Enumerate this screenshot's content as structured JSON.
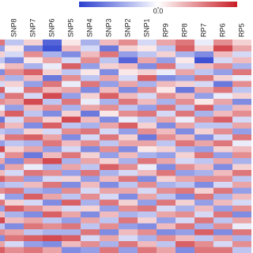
{
  "chart_data": {
    "type": "heatmap",
    "columns": [
      null,
      "SNP8",
      "SNP7",
      "SNP6",
      "SNP5",
      "SNP4",
      "SNP3",
      "SNP2",
      "SNP1",
      "RP9",
      "RP8",
      "RP7",
      "RP6",
      "RP5"
    ],
    "colormap": [
      "#2b3fcf",
      "#ffffff",
      "#c81d25"
    ],
    "zlim": [
      -1,
      1
    ],
    "cbar_ticks": [
      {
        "value": 0,
        "label": "0.0"
      }
    ],
    "values": [
      [
        0.6,
        -0.3,
        0.2,
        -0.8,
        0.1,
        -0.4,
        0.3,
        0.5,
        -0.2,
        0.4,
        0.6,
        -0.1,
        0.5,
        0.2
      ],
      [
        -0.5,
        0.1,
        -0.6,
        -0.9,
        0.3,
        -0.2,
        -0.7,
        0.2,
        0.1,
        -0.3,
        0.7,
        0.2,
        0.8,
        0.4
      ],
      [
        0.2,
        -0.2,
        0.5,
        -0.4,
        -0.6,
        0.3,
        0.6,
        -0.5,
        -0.3,
        0.2,
        -0.4,
        -0.6,
        0.3,
        -0.2
      ],
      [
        -0.3,
        -0.6,
        0.1,
        0.4,
        -0.2,
        0.5,
        -0.3,
        -0.8,
        0.4,
        -0.5,
        0.1,
        -0.9,
        -0.2,
        0.3
      ],
      [
        0.1,
        0.3,
        -0.4,
        -0.1,
        0.7,
        -0.5,
        0.2,
        0.3,
        -0.6,
        0.6,
        -0.2,
        0.3,
        0.5,
        -0.4
      ],
      [
        -0.6,
        0.5,
        0.7,
        0.2,
        -0.3,
        0.1,
        -0.6,
        0.1,
        0.2,
        -0.1,
        0.4,
        -0.3,
        -0.5,
        0.6
      ],
      [
        0.4,
        -0.4,
        0.3,
        -0.7,
        0.5,
        -0.3,
        0.4,
        -0.2,
        0.7,
        -0.6,
        -0.5,
        0.6,
        0.2,
        -0.1
      ],
      [
        -0.2,
        0.2,
        -0.5,
        0.6,
        -0.1,
        0.6,
        -0.5,
        0.4,
        -0.4,
        0.3,
        0.2,
        -0.2,
        -0.7,
        0.5
      ],
      [
        0.7,
        -0.1,
        0.6,
        0.3,
        0.4,
        -0.6,
        0.3,
        -0.6,
        0.5,
        0.1,
        -0.7,
        0.4,
        0.6,
        -0.3
      ],
      [
        -0.4,
        0.6,
        -0.2,
        0.8,
        -0.5,
        0.2,
        0.7,
        0.3,
        -0.2,
        0.5,
        0.3,
        -0.5,
        -0.1,
        0.2
      ],
      [
        0.5,
        0.4,
        0.8,
        -0.3,
        0.6,
        -0.1,
        -0.4,
        0.6,
        0.3,
        -0.4,
        0.5,
        0.1,
        0.4,
        -0.6
      ],
      [
        -0.1,
        -0.5,
        0.3,
        0.5,
        -0.4,
        0.4,
        0.5,
        -0.3,
        -0.5,
        0.6,
        -0.3,
        0.7,
        -0.4,
        0.3
      ],
      [
        0.3,
        0.7,
        -0.3,
        -0.6,
        0.2,
        -0.7,
        0.1,
        0.5,
        0.6,
        -0.2,
        0.6,
        -0.4,
        0.3,
        0.5
      ],
      [
        -0.7,
        -0.2,
        0.5,
        0.2,
        0.8,
        0.3,
        -0.6,
        -0.1,
        -0.3,
        0.4,
        -0.1,
        0.5,
        0.7,
        -0.2
      ],
      [
        0.6,
        0.3,
        -0.6,
        0.7,
        -0.3,
        -0.4,
        0.4,
        0.7,
        0.2,
        -0.6,
        0.4,
        -0.3,
        -0.3,
        0.4
      ],
      [
        -0.3,
        -0.4,
        0.2,
        -0.2,
        0.5,
        0.6,
        -0.2,
        -0.5,
        0.5,
        0.3,
        -0.6,
        0.2,
        0.5,
        -0.5
      ],
      [
        0.2,
        0.6,
        0.7,
        0.4,
        -0.6,
        -0.2,
        0.6,
        0.2,
        -0.7,
        0.5,
        0.3,
        -0.6,
        -0.2,
        0.6
      ],
      [
        -0.5,
        -0.3,
        -0.4,
        0.6,
        0.3,
        0.5,
        -0.3,
        0.4,
        0.4,
        -0.3,
        0.6,
        0.4,
        0.6,
        -0.1
      ],
      [
        0.8,
        0.2,
        0.4,
        -0.5,
        -0.2,
        -0.6,
        0.5,
        -0.6,
        0.1,
        0.2,
        -0.4,
        -0.5,
        0.2,
        0.3
      ],
      [
        -0.2,
        0.5,
        -0.7,
        0.3,
        0.6,
        0.2,
        -0.5,
        0.3,
        -0.4,
        -0.5,
        0.2,
        0.6,
        -0.5,
        0.5
      ],
      [
        0.4,
        -0.6,
        0.5,
        0.8,
        -0.4,
        0.4,
        0.2,
        -0.4,
        0.6,
        0.4,
        -0.2,
        -0.3,
        0.4,
        -0.4
      ],
      [
        -0.6,
        0.4,
        -0.1,
        -0.4,
        0.4,
        -0.3,
        0.7,
        0.5,
        -0.1,
        -0.6,
        0.5,
        0.3,
        -0.6,
        0.2
      ],
      [
        0.3,
        -0.2,
        0.6,
        0.5,
        -0.5,
        0.6,
        -0.4,
        -0.2,
        0.3,
        0.6,
        -0.5,
        -0.4,
        0.3,
        0.6
      ],
      [
        0.7,
        0.5,
        -0.5,
        -0.2,
        0.2,
        -0.5,
        0.3,
        0.6,
        -0.6,
        0.2,
        0.4,
        0.5,
        0.5,
        -0.3
      ],
      [
        -0.4,
        -0.3,
        0.3,
        0.6,
        -0.6,
        0.3,
        -0.6,
        -0.3,
        0.5,
        -0.4,
        -0.3,
        -0.6,
        -0.2,
        0.4
      ],
      [
        0.5,
        0.6,
        -0.4,
        -0.5,
        0.5,
        -0.2,
        0.4,
        0.4,
        -0.2,
        0.5,
        0.6,
        0.2,
        0.6,
        -0.5
      ],
      [
        -0.1,
        -0.5,
        0.7,
        0.4,
        -0.3,
        0.5,
        -0.2,
        -0.6,
        0.4,
        -0.3,
        -0.6,
        0.6,
        -0.4,
        0.3
      ],
      [
        0.6,
        0.2,
        -0.2,
        -0.6,
        0.7,
        -0.4,
        0.6,
        0.2,
        -0.5,
        0.6,
        0.2,
        -0.5,
        0.3,
        -0.2
      ],
      [
        -0.5,
        0.7,
        0.5,
        0.3,
        -0.2,
        0.2,
        -0.5,
        0.5,
        0.6,
        -0.2,
        -0.4,
        0.3,
        -0.5,
        0.5
      ],
      [
        0.3,
        -0.4,
        -0.6,
        0.7,
        0.4,
        -0.6,
        0.3,
        -0.4,
        -0.3,
        0.4,
        0.5,
        -0.2,
        0.6,
        -0.6
      ],
      [
        0.8,
        0.3,
        0.4,
        -0.3,
        -0.5,
        0.4,
        -0.3,
        0.6,
        0.2,
        -0.5,
        -0.2,
        0.6,
        -0.3,
        0.4
      ],
      [
        -0.3,
        -0.6,
        0.6,
        0.5,
        0.6,
        -0.3,
        0.5,
        -0.5,
        -0.6,
        0.3,
        0.6,
        -0.4,
        0.5,
        -0.1
      ],
      [
        0.5,
        0.4,
        -0.3,
        -0.4,
        -0.4,
        0.6,
        -0.6,
        0.3,
        0.5,
        -0.6,
        -0.5,
        0.7,
        -0.6,
        0.6
      ],
      [
        -0.6,
        0.6,
        0.7,
        0.8,
        0.7,
        -0.2,
        0.4,
        -0.2,
        -0.4,
        0.5,
        0.3,
        -0.3,
        0.4,
        -0.4
      ],
      [
        0.4,
        -0.2,
        -0.5,
        -0.6,
        0.3,
        0.5,
        -0.4,
        0.6,
        0.3,
        -0.3,
        0.7,
        0.5,
        -0.2,
        0.5
      ],
      [
        0.7,
        0.5,
        0.6,
        0.4,
        -0.6,
        -0.5,
        0.6,
        -0.5,
        0.6,
        0.4,
        -0.6,
        0.6,
        0.6,
        -0.3
      ]
    ]
  }
}
